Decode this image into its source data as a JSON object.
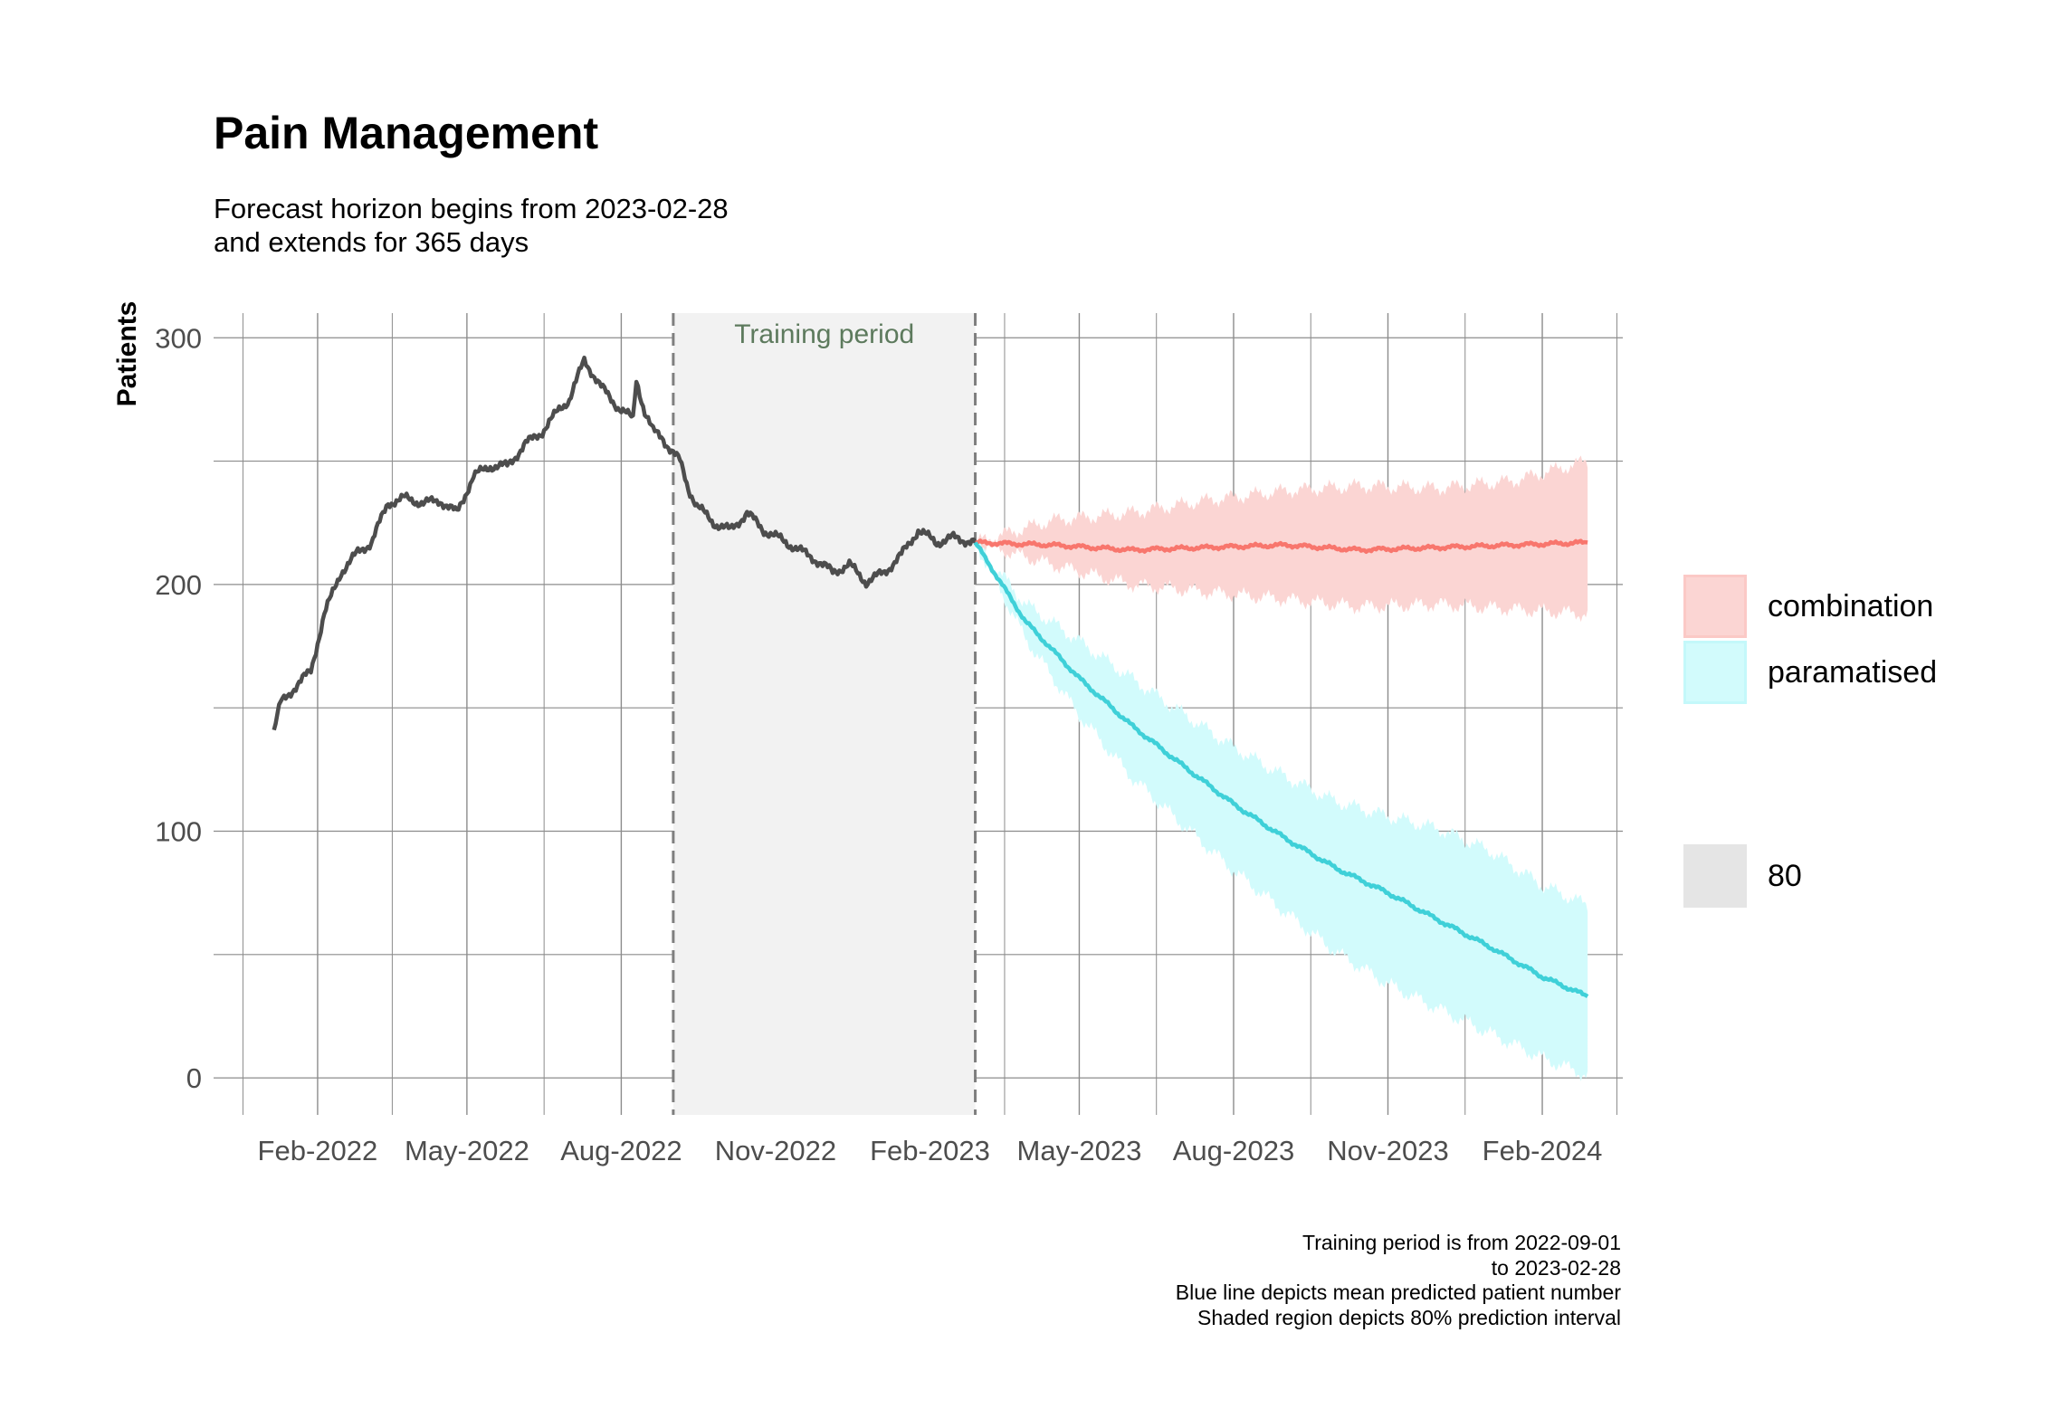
{
  "title": "Pain Management",
  "subtitle": [
    "Forecast horizon begins from 2023-02-28",
    "and extends for 365 days"
  ],
  "caption": [
    "Training period is from 2022-09-01",
    "to 2023-02-28",
    "Blue line depicts mean predicted patient number",
    "Shaded region depicts 80% prediction interval"
  ],
  "legend": {
    "items": [
      {
        "label": "combination",
        "color": "#f8766d"
      },
      {
        "label": "paramatised",
        "color": "#00e5ee"
      }
    ],
    "interval": {
      "label": "80",
      "color": "#e5e5e5"
    }
  },
  "chart_data": {
    "type": "line",
    "title": "Pain Management",
    "xlabel": "",
    "ylabel": "Patients",
    "xlim": [
      "2021-12-01",
      "2024-03-20"
    ],
    "ylim": [
      -15,
      310
    ],
    "x_ticks": [
      "2022-02-01",
      "2022-05-01",
      "2022-08-01",
      "2022-11-01",
      "2023-02-01",
      "2023-05-01",
      "2023-08-01",
      "2023-11-01",
      "2024-02-01"
    ],
    "x_tick_labels": [
      "Feb-2022",
      "May-2022",
      "Aug-2022",
      "Nov-2022",
      "Feb-2023",
      "May-2023",
      "Aug-2023",
      "Nov-2023",
      "Feb-2024"
    ],
    "y_ticks": [
      0,
      100,
      200,
      300
    ],
    "y_tick_labels": [
      "0",
      "100",
      "200",
      "300"
    ],
    "grid": true,
    "legend_position": "right",
    "training_period": {
      "start": "2022-09-01",
      "end": "2023-02-28",
      "label": "Training period"
    },
    "observed": {
      "color": "#4d4d4d",
      "x": [
        "2022-01-06",
        "2022-01-10",
        "2022-01-18",
        "2022-01-28",
        "2022-02-05",
        "2022-02-15",
        "2022-02-25",
        "2022-03-05",
        "2022-03-15",
        "2022-03-25",
        "2022-04-05",
        "2022-04-15",
        "2022-04-25",
        "2022-05-05",
        "2022-05-15",
        "2022-05-25",
        "2022-06-05",
        "2022-06-15",
        "2022-06-25",
        "2022-07-01",
        "2022-07-05",
        "2022-07-10",
        "2022-07-20",
        "2022-07-30",
        "2022-08-08",
        "2022-08-10",
        "2022-08-15",
        "2022-08-20",
        "2022-08-25",
        "2022-08-30",
        "2022-09-05",
        "2022-09-10",
        "2022-09-15",
        "2022-09-25",
        "2022-10-05",
        "2022-10-15",
        "2022-10-25",
        "2022-11-05",
        "2022-11-15",
        "2022-11-25",
        "2022-12-05",
        "2022-12-15",
        "2022-12-25",
        "2023-01-05",
        "2023-01-15",
        "2023-01-25",
        "2023-02-05",
        "2023-02-15",
        "2023-02-28"
      ],
      "y": [
        141,
        152,
        158,
        165,
        188,
        205,
        213,
        217,
        233,
        235,
        233,
        234,
        229,
        244,
        248,
        248,
        257,
        262,
        271,
        275,
        282,
        291,
        280,
        272,
        267,
        283,
        270,
        262,
        260,
        255,
        250,
        239,
        232,
        225,
        222,
        229,
        222,
        218,
        214,
        210,
        205,
        208,
        201,
        205,
        212,
        222,
        217,
        219,
        217
      ]
    },
    "series": [
      {
        "name": "combination",
        "color": "#f8766d",
        "x": [
          "2023-02-28",
          "2023-04-15",
          "2023-06-01",
          "2023-07-15",
          "2023-09-01",
          "2023-10-15",
          "2023-12-01",
          "2024-01-15",
          "2024-02-28"
        ],
        "mean": [
          217,
          216,
          214,
          215,
          216,
          214,
          215,
          216,
          217
        ],
        "lower": [
          217,
          208,
          200,
          197,
          194,
          191,
          192,
          190,
          188
        ],
        "upper": [
          217,
          226,
          229,
          234,
          238,
          240,
          239,
          242,
          250
        ]
      },
      {
        "name": "paramatised",
        "color": "#3fd0d8",
        "x": [
          "2023-02-28",
          "2023-03-30",
          "2023-05-01",
          "2023-06-01",
          "2023-07-01",
          "2023-08-01",
          "2023-09-01",
          "2023-10-01",
          "2023-11-01",
          "2023-12-01",
          "2024-01-01",
          "2024-02-01",
          "2024-02-28"
        ],
        "mean": [
          217,
          185,
          162,
          143,
          127,
          111,
          97,
          85,
          75,
          64,
          53,
          41,
          33
        ],
        "lower": [
          217,
          178,
          147,
          122,
          103,
          84,
          67,
          51,
          38,
          28,
          18,
          8,
          1
        ],
        "upper": [
          217,
          192,
          177,
          162,
          148,
          134,
          122,
          112,
          106,
          101,
          92,
          78,
          70
        ]
      }
    ]
  }
}
